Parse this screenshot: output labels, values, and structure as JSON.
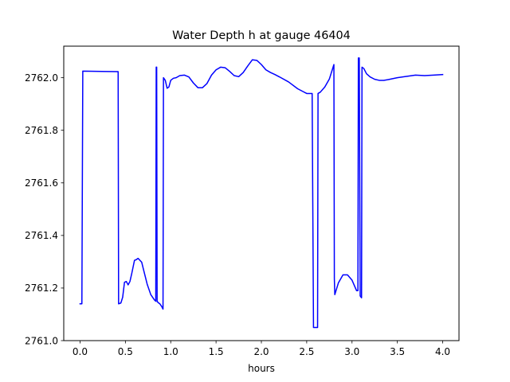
{
  "chart_data": {
    "type": "line",
    "title": "Water Depth h at gauge 46404",
    "xlabel": "hours",
    "ylabel": "",
    "xlim": [
      -0.18,
      4.18
    ],
    "ylim": [
      2761.0,
      2762.12
    ],
    "grid": false,
    "x_ticks": [
      {
        "value": 0.0,
        "label": "0.0"
      },
      {
        "value": 0.5,
        "label": "0.5"
      },
      {
        "value": 1.0,
        "label": "1.0"
      },
      {
        "value": 1.5,
        "label": "1.5"
      },
      {
        "value": 2.0,
        "label": "2.0"
      },
      {
        "value": 2.5,
        "label": "2.5"
      },
      {
        "value": 3.0,
        "label": "3.0"
      },
      {
        "value": 3.5,
        "label": "3.5"
      },
      {
        "value": 4.0,
        "label": "4.0"
      }
    ],
    "y_ticks": [
      {
        "value": 2761.0,
        "label": "2761.0"
      },
      {
        "value": 2761.2,
        "label": "2761.2"
      },
      {
        "value": 2761.4,
        "label": "2761.4"
      },
      {
        "value": 2761.6,
        "label": "2761.6"
      },
      {
        "value": 2761.8,
        "label": "2761.8"
      },
      {
        "value": 2762.0,
        "label": "2762.0"
      }
    ],
    "series": [
      {
        "color": "#0000ff",
        "x": [
          0.0,
          0.01,
          0.02,
          0.03,
          0.42,
          0.425,
          0.45,
          0.47,
          0.49,
          0.51,
          0.53,
          0.55,
          0.57,
          0.6,
          0.62,
          0.64,
          0.68,
          0.7,
          0.74,
          0.78,
          0.82,
          0.835,
          0.84,
          0.845,
          0.85,
          0.855,
          0.86,
          0.88,
          0.9,
          0.915,
          0.92,
          0.94,
          0.96,
          0.98,
          1.0,
          1.03,
          1.06,
          1.1,
          1.15,
          1.2,
          1.25,
          1.3,
          1.35,
          1.4,
          1.45,
          1.5,
          1.55,
          1.6,
          1.65,
          1.7,
          1.75,
          1.8,
          1.85,
          1.9,
          1.95,
          2.0,
          2.05,
          2.1,
          2.15,
          2.2,
          2.3,
          2.4,
          2.5,
          2.56,
          2.575,
          2.58,
          2.62,
          2.625,
          2.65,
          2.7,
          2.75,
          2.8,
          2.805,
          2.81,
          2.85,
          2.9,
          2.95,
          3.0,
          3.05,
          3.065,
          3.07,
          3.08,
          3.09,
          3.1,
          3.105,
          3.11,
          3.13,
          3.16,
          3.2,
          3.25,
          3.3,
          3.35,
          3.4,
          3.5,
          3.6,
          3.7,
          3.8,
          3.9,
          4.0
        ],
        "y": [
          2761.14,
          2761.14,
          2761.14,
          2762.025,
          2762.023,
          2761.14,
          2761.143,
          2761.165,
          2761.222,
          2761.225,
          2761.212,
          2761.225,
          2761.255,
          2761.305,
          2761.308,
          2761.313,
          2761.298,
          2761.27,
          2761.215,
          2761.175,
          2761.155,
          2761.15,
          2762.04,
          2762.04,
          2761.148,
          2761.148,
          2761.145,
          2761.14,
          2761.13,
          2761.12,
          2762.0,
          2761.99,
          2761.96,
          2761.965,
          2761.99,
          2761.998,
          2762.0,
          2762.008,
          2762.01,
          2762.003,
          2761.98,
          2761.962,
          2761.962,
          2761.978,
          2762.01,
          2762.03,
          2762.04,
          2762.038,
          2762.024,
          2762.008,
          2762.004,
          2762.02,
          2762.045,
          2762.068,
          2762.066,
          2762.05,
          2762.03,
          2762.02,
          2762.012,
          2762.003,
          2761.984,
          2761.958,
          2761.94,
          2761.94,
          2761.05,
          2761.05,
          2761.05,
          2761.94,
          2761.945,
          2761.965,
          2761.995,
          2762.05,
          2761.235,
          2761.175,
          2761.22,
          2761.25,
          2761.25,
          2761.23,
          2761.19,
          2761.19,
          2762.075,
          2762.075,
          2761.17,
          2761.165,
          2761.163,
          2762.04,
          2762.035,
          2762.015,
          2762.003,
          2761.994,
          2761.99,
          2761.99,
          2761.993,
          2762.0,
          2762.005,
          2762.01,
          2762.008,
          2762.01,
          2762.012
        ]
      }
    ]
  }
}
